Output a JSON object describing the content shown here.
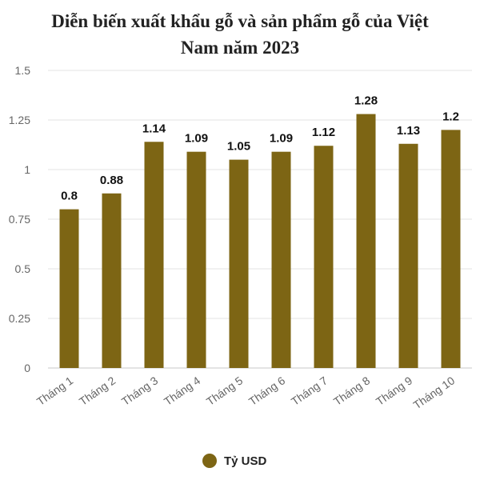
{
  "chart_data": {
    "type": "bar",
    "title_lines": [
      "Diễn biến xuất khẩu gỗ và sản phẩm gỗ của Việt",
      "Nam năm 2023"
    ],
    "categories": [
      "Tháng 1",
      "Tháng 2",
      "Tháng 3",
      "Tháng 4",
      "Tháng 5",
      "Tháng 6",
      "Tháng 7",
      "Tháng 8",
      "Tháng 9",
      "Tháng 10"
    ],
    "series": [
      {
        "name": "Tỷ USD",
        "values": [
          0.8,
          0.88,
          1.14,
          1.09,
          1.05,
          1.09,
          1.12,
          1.28,
          1.13,
          1.2
        ],
        "labels": [
          "0.8",
          "0.88",
          "1.14",
          "1.09",
          "1.05",
          "1.09",
          "1.12",
          "1.28",
          "1.13",
          "1.2"
        ],
        "color": "#7d6514"
      }
    ],
    "y_ticks": [
      "0",
      "0.25",
      "0.5",
      "0.75",
      "1",
      "1.25",
      "1.5"
    ],
    "ylim": [
      0,
      1.5
    ],
    "xlabel": "",
    "ylabel": "",
    "grid": true,
    "legend_position": "bottom"
  }
}
